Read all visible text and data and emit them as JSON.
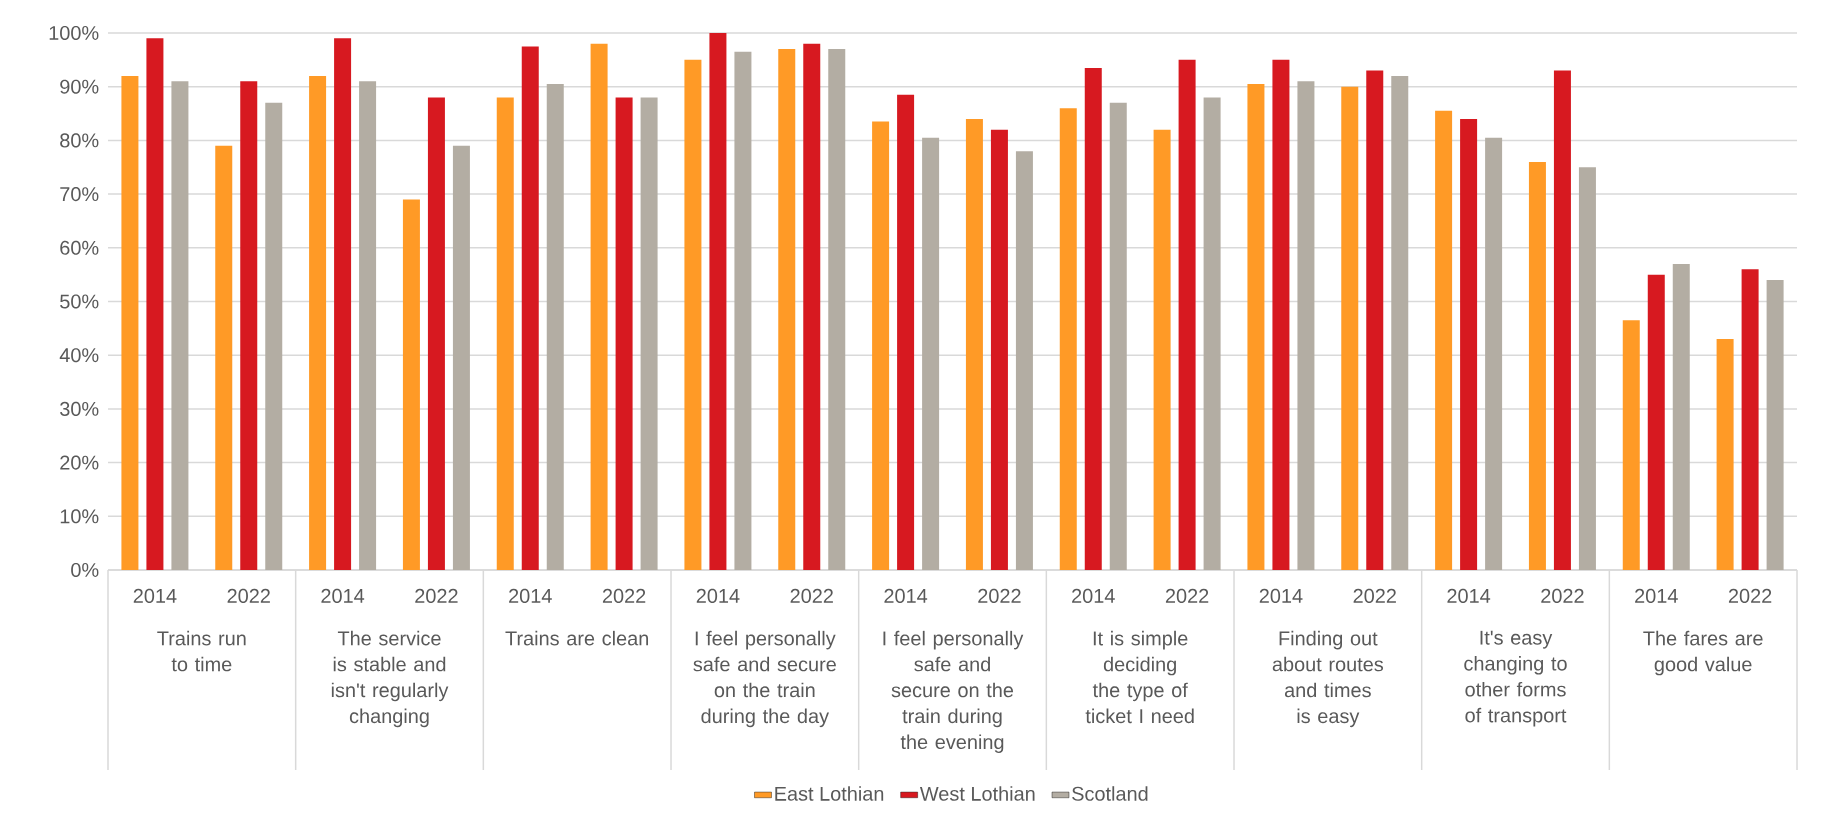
{
  "chart_data": {
    "type": "bar",
    "categories": [
      "2014",
      "2022",
      "2014",
      "2022",
      "2014",
      "2022",
      "2014",
      "2022",
      "2014",
      "2022",
      "2014",
      "2022",
      "2014",
      "2022",
      "2014",
      "2022",
      "2014",
      "2022"
    ],
    "annotations": [
      "Trains run to time",
      "The service is stable and isn't regularly changing",
      "Trains are clean",
      "I feel personally safe and secure on the train during the day",
      "I feel personally safe and secure on the train during the evening",
      "It is simple deciding the type of ticket I need",
      "Finding out about routes and times is easy",
      "It's easy changing to other forms of transport",
      "The fares are good value"
    ],
    "series": [
      {
        "name": "East Lothian",
        "color": "#ff9a26",
        "values": [
          92,
          79,
          92,
          69,
          88,
          98,
          95,
          97,
          83.5,
          84,
          86,
          82,
          90.5,
          90,
          85.5,
          76,
          46.5,
          43
        ]
      },
      {
        "name": "West Lothian",
        "color": "#d71920",
        "values": [
          99,
          91,
          99,
          88,
          97.5,
          88,
          100,
          98,
          88.5,
          82,
          93.5,
          95,
          95,
          93,
          84,
          93,
          55,
          56
        ]
      },
      {
        "name": "Scotland",
        "color": "#b3ada3",
        "values": [
          91,
          87,
          91,
          79,
          90.5,
          88,
          96.5,
          97,
          80.5,
          78,
          87,
          88,
          91,
          92,
          80.5,
          75,
          57,
          54
        ]
      }
    ],
    "ylim": [
      0,
      100
    ],
    "yticks": [
      {
        "value": 0,
        "label": "0%"
      },
      {
        "value": 10,
        "label": "10%"
      },
      {
        "value": 20,
        "label": "20%"
      },
      {
        "value": 30,
        "label": "30%"
      },
      {
        "value": 40,
        "label": "40%"
      },
      {
        "value": 50,
        "label": "50%"
      },
      {
        "value": 60,
        "label": "60%"
      },
      {
        "value": 70,
        "label": "70%"
      },
      {
        "value": 80,
        "label": "80%"
      },
      {
        "value": 90,
        "label": "90%"
      },
      {
        "value": 100,
        "label": "100%"
      }
    ],
    "grid": "y",
    "legend": "bottom"
  }
}
